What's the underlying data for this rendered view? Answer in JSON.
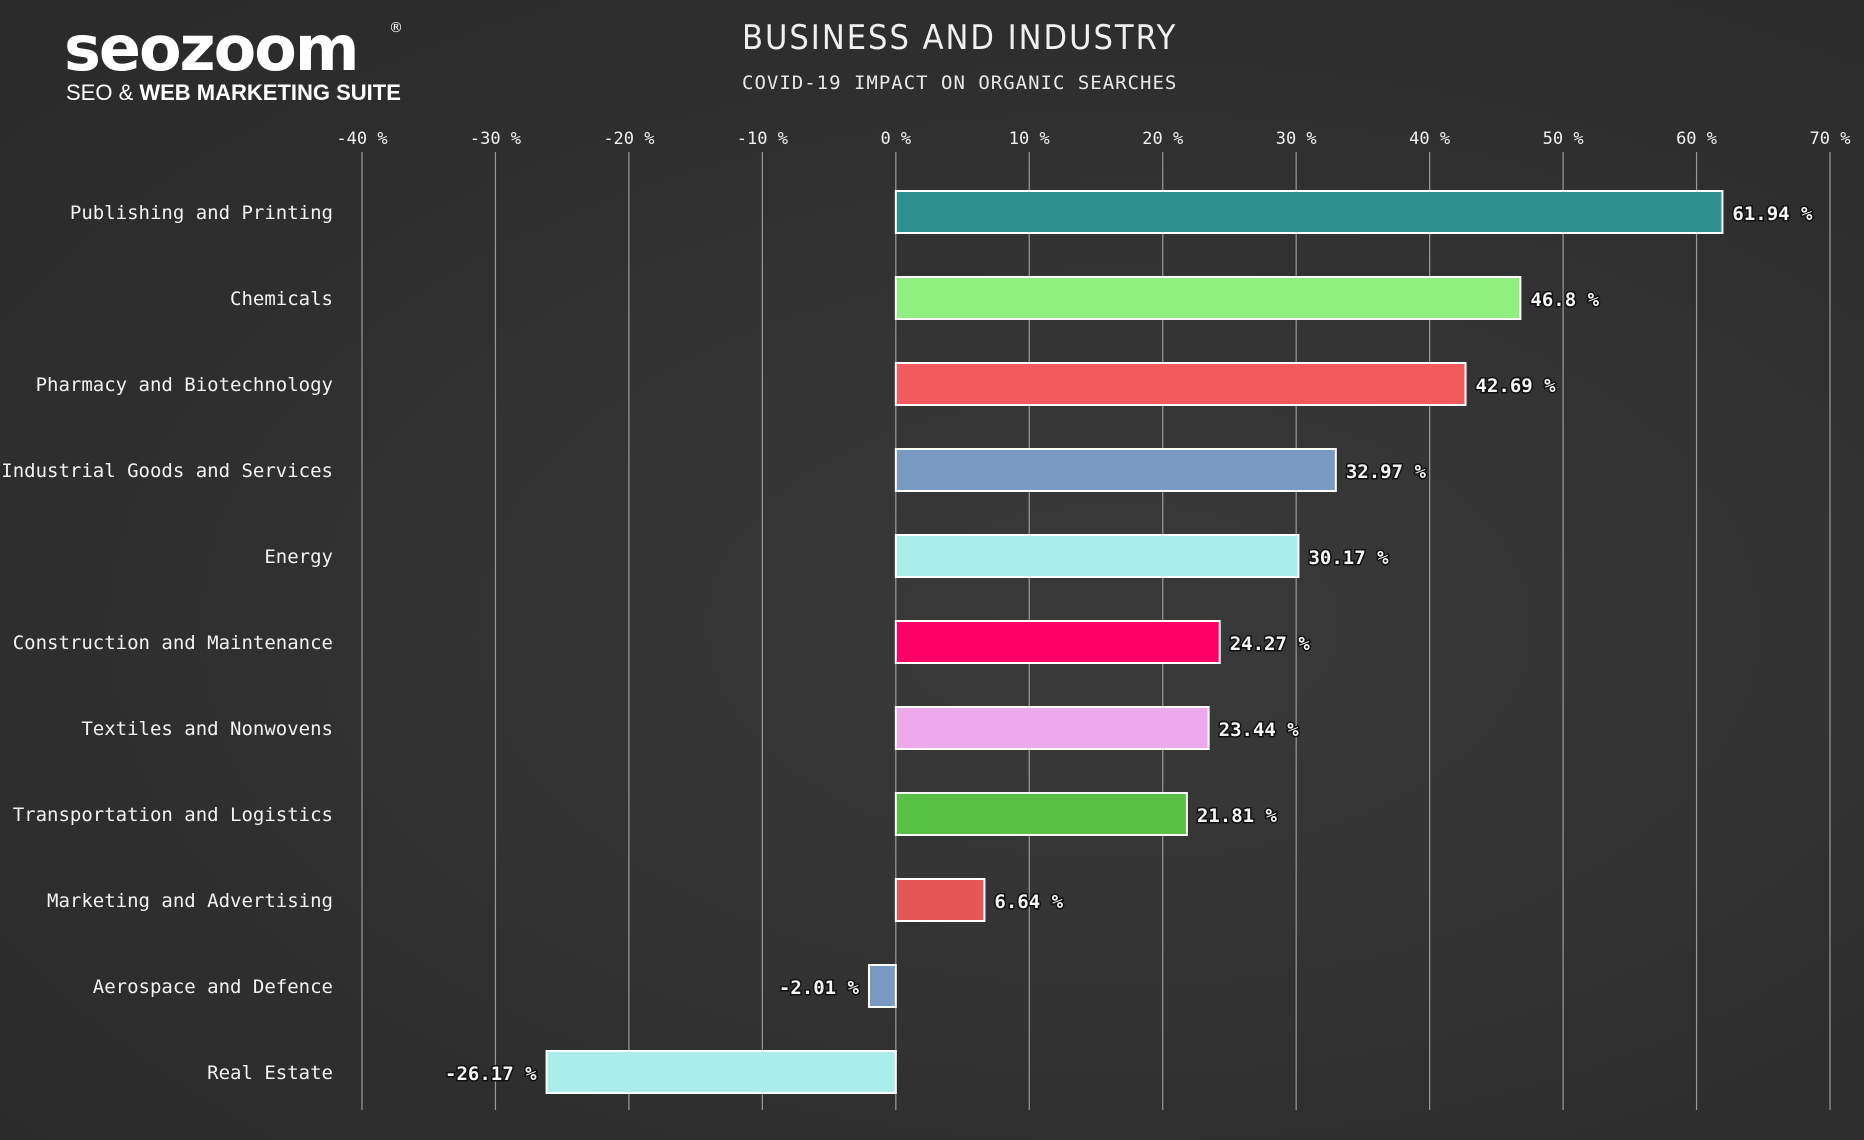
{
  "brand": {
    "name": "seozoom",
    "registered": "®",
    "tagline_light": "SEO & ",
    "tagline_bold": "WEB MARKETING SUITE"
  },
  "header": {
    "title": "BUSINESS AND INDUSTRY",
    "subtitle": "COVID-19 IMPACT ON ORGANIC SEARCHES"
  },
  "chart_data": {
    "type": "bar",
    "orientation": "horizontal",
    "title": "BUSINESS AND INDUSTRY",
    "subtitle": "COVID-19 IMPACT ON ORGANIC SEARCHES",
    "xlim": [
      -40,
      70
    ],
    "xticks": [
      -40,
      -30,
      -20,
      -10,
      0,
      10,
      20,
      30,
      40,
      50,
      60,
      70
    ],
    "tick_suffix": " %",
    "tick_position": "top",
    "grid": true,
    "categories": [
      "Publishing and Printing",
      "Chemicals",
      "Pharmacy and Biotechnology",
      "Industrial Goods and Services",
      "Energy",
      "Construction and Maintenance",
      "Textiles and Nonwovens",
      "Transportation and Logistics",
      "Marketing and Advertising",
      "Aerospace and Defence",
      "Real Estate"
    ],
    "values": [
      61.94,
      46.8,
      42.69,
      32.97,
      30.17,
      24.27,
      23.44,
      21.81,
      6.64,
      -2.01,
      -26.17
    ],
    "value_labels": [
      "61.94 %",
      "46.8 %",
      "42.69 %",
      "32.97 %",
      "30.17 %",
      "24.27 %",
      "23.44 %",
      "21.81 %",
      "6.64 %",
      "-2.01 %",
      "-26.17 %"
    ],
    "colors": [
      "#2e8f8f",
      "#8fef7f",
      "#f25a5e",
      "#7799c2",
      "#aaeeec",
      "#ff0066",
      "#eea8ec",
      "#57c143",
      "#e25656",
      "#7799c2",
      "#aaeeec"
    ],
    "bar_outline": "#ffffff",
    "gridline_color": "#9a9a9a"
  }
}
